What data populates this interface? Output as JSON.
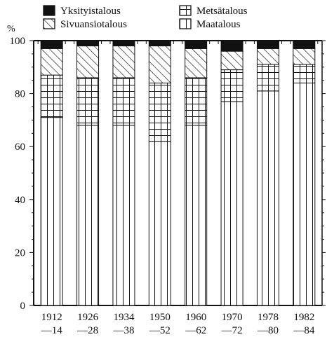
{
  "chart_data": {
    "type": "bar",
    "stacked": true,
    "ylabel": "%",
    "ylim": [
      0,
      100
    ],
    "y_ticks": [
      "0",
      "20",
      "40",
      "60",
      "80",
      "100"
    ],
    "categories": [
      [
        "1912",
        "—14"
      ],
      [
        "1926",
        "—28"
      ],
      [
        "1934",
        "—38"
      ],
      [
        "1950",
        "—52"
      ],
      [
        "1960",
        "—62"
      ],
      [
        "1970",
        "—72"
      ],
      [
        "1978",
        "—80"
      ],
      [
        "1982",
        "—84"
      ]
    ],
    "series": [
      {
        "name": "Maatalous",
        "pattern": "vertical-lines",
        "values": [
          71,
          68,
          68,
          62,
          68,
          77,
          81,
          84
        ]
      },
      {
        "name": "Metsätalous",
        "pattern": "grid",
        "values": [
          16,
          18,
          18,
          22,
          18,
          12,
          10,
          7
        ]
      },
      {
        "name": "Sivuansiotalous",
        "pattern": "diagonal-hatch",
        "values": [
          10,
          12,
          12,
          14,
          11,
          7,
          6,
          6
        ]
      },
      {
        "name": "Yksityistalous",
        "pattern": "solid-black",
        "values": [
          3,
          2,
          2,
          2,
          3,
          4,
          3,
          3
        ]
      }
    ],
    "legend": {
      "placement": "top",
      "order": [
        "Yksityistalous",
        "Metsätalous",
        "Sivuansiotalous",
        "Maatalous"
      ]
    },
    "grid": false
  }
}
